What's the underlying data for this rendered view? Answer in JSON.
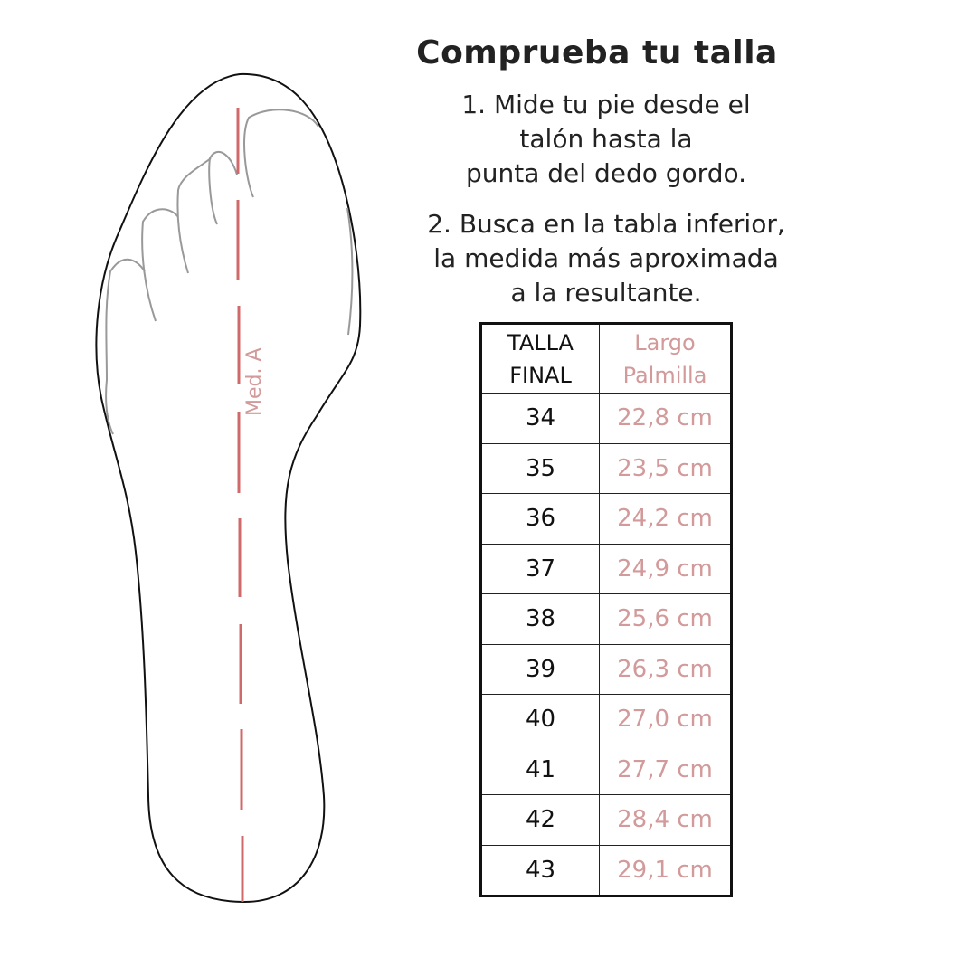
{
  "title": "Comprueba tu talla",
  "steps": [
    {
      "lines": [
        "1. Mide tu pie desde el",
        "talón hasta la",
        "punta del dedo gordo."
      ]
    },
    {
      "lines": [
        "2. Busca en la tabla inferior,",
        "la medida más aproximada",
        "a la resultante."
      ]
    }
  ],
  "diagram": {
    "measure_label": "Med. A",
    "measure_color": "#d06a6a"
  },
  "table": {
    "headers": [
      [
        "TALLA",
        "FINAL"
      ],
      [
        "Largo",
        "Palmilla"
      ]
    ],
    "rows": [
      [
        "34",
        "22,8 cm"
      ],
      [
        "35",
        "23,5 cm"
      ],
      [
        "36",
        "24,2 cm"
      ],
      [
        "37",
        "24,9 cm"
      ],
      [
        "38",
        "25,6 cm"
      ],
      [
        "39",
        "26,3 cm"
      ],
      [
        "40",
        "27,0 cm"
      ],
      [
        "41",
        "27,7 cm"
      ],
      [
        "42",
        "28,4 cm"
      ],
      [
        "43",
        "29,1 cm"
      ]
    ],
    "value_color": "#d29a9a"
  }
}
